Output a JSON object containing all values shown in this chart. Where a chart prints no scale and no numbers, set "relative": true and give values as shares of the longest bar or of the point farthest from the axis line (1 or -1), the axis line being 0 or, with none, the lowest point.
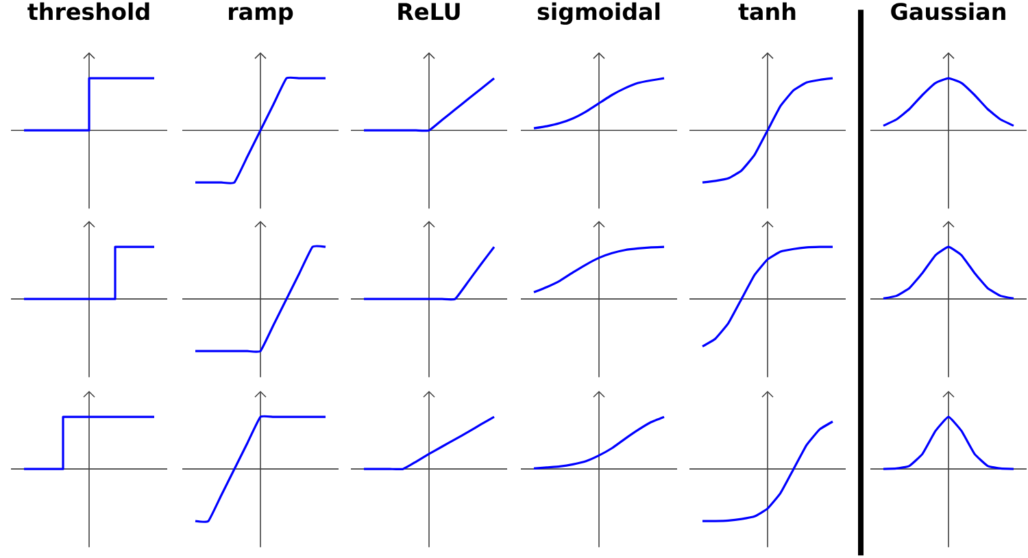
{
  "chart_data": [
    {
      "type": "step",
      "title": "threshold",
      "relative": true,
      "color": "#0000ff",
      "categories": [
        null,
        null,
        null,
        null,
        null,
        null,
        null,
        null,
        null,
        null,
        null
      ],
      "values": [
        0,
        0,
        0,
        0,
        0,
        1,
        1,
        1,
        1,
        1,
        1
      ]
    },
    {
      "type": "line",
      "title": "ramp",
      "relative": true,
      "color": "#0000ff",
      "categories": [
        null,
        null,
        null,
        null,
        null,
        null,
        null,
        null,
        null,
        null,
        null
      ],
      "values": [
        -1,
        -1,
        -1,
        -1,
        -0.5,
        0,
        0.5,
        1,
        1,
        1,
        1
      ]
    },
    {
      "type": "line",
      "title": "ReLU",
      "relative": true,
      "color": "#0000ff",
      "categories": [
        null,
        null,
        null,
        null,
        null,
        null,
        null,
        null,
        null,
        null,
        null
      ],
      "values": [
        0,
        0,
        0,
        0,
        0,
        0,
        0.2,
        0.4,
        0.6,
        0.8,
        1
      ]
    },
    {
      "type": "line",
      "title": "sigmoidal",
      "relative": true,
      "color": "#0000ff",
      "categories": [
        null,
        null,
        null,
        null,
        null,
        null,
        null,
        null,
        null,
        null,
        null
      ],
      "values": [
        0.04,
        0.08,
        0.14,
        0.23,
        0.36,
        0.52,
        0.68,
        0.81,
        0.91,
        0.96,
        1
      ]
    },
    {
      "type": "line",
      "title": "tanh",
      "relative": true,
      "color": "#0000ff",
      "categories": [
        null,
        null,
        null,
        null,
        null,
        null,
        null,
        null,
        null,
        null,
        null
      ],
      "values": [
        -1,
        -0.97,
        -0.92,
        -0.77,
        -0.47,
        0,
        0.47,
        0.77,
        0.92,
        0.97,
        1
      ]
    },
    {
      "type": "line",
      "title": "Gaussian",
      "relative": true,
      "color": "#0000ff",
      "categories": [
        null,
        null,
        null,
        null,
        null,
        null,
        null,
        null,
        null,
        null,
        null
      ],
      "values": [
        0.09,
        0.21,
        0.41,
        0.68,
        0.91,
        1,
        0.91,
        0.68,
        0.41,
        0.21,
        0.09
      ]
    },
    {
      "type": "step",
      "relative": true,
      "color": "#0000ff",
      "categories": [
        null,
        null,
        null,
        null,
        null,
        null,
        null,
        null,
        null,
        null,
        null
      ],
      "values": [
        0,
        0,
        0,
        0,
        0,
        0,
        0,
        1,
        1,
        1,
        1
      ]
    },
    {
      "type": "line",
      "relative": true,
      "color": "#0000ff",
      "categories": [
        null,
        null,
        null,
        null,
        null,
        null,
        null,
        null,
        null,
        null,
        null
      ],
      "values": [
        -1,
        -1,
        -1,
        -1,
        -1,
        -1,
        -0.5,
        0,
        0.5,
        1,
        1
      ]
    },
    {
      "type": "line",
      "relative": true,
      "color": "#0000ff",
      "categories": [
        null,
        null,
        null,
        null,
        null,
        null,
        null,
        null,
        null,
        null,
        null
      ],
      "values": [
        0,
        0,
        0,
        0,
        0,
        0,
        0,
        0,
        0.33,
        0.67,
        1
      ]
    },
    {
      "type": "line",
      "relative": true,
      "color": "#0000ff",
      "categories": [
        null,
        null,
        null,
        null,
        null,
        null,
        null,
        null,
        null,
        null,
        null
      ],
      "values": [
        0.13,
        0.23,
        0.35,
        0.51,
        0.66,
        0.79,
        0.88,
        0.94,
        0.97,
        0.99,
        1
      ]
    },
    {
      "type": "line",
      "relative": true,
      "color": "#0000ff",
      "categories": [
        null,
        null,
        null,
        null,
        null,
        null,
        null,
        null,
        null,
        null,
        null
      ],
      "values": [
        -0.91,
        -0.76,
        -0.46,
        0,
        0.46,
        0.76,
        0.91,
        0.96,
        0.99,
        1,
        1
      ]
    },
    {
      "type": "line",
      "relative": true,
      "color": "#0000ff",
      "categories": [
        null,
        null,
        null,
        null,
        null,
        null,
        null,
        null,
        null,
        null,
        null
      ],
      "values": [
        0.01,
        0.06,
        0.21,
        0.5,
        0.84,
        1,
        0.84,
        0.5,
        0.21,
        0.06,
        0.01
      ]
    },
    {
      "type": "step",
      "relative": true,
      "color": "#0000ff",
      "categories": [
        null,
        null,
        null,
        null,
        null,
        null,
        null,
        null,
        null,
        null,
        null
      ],
      "values": [
        0,
        0,
        0,
        1,
        1,
        1,
        1,
        1,
        1,
        1,
        1
      ]
    },
    {
      "type": "line",
      "relative": true,
      "color": "#0000ff",
      "categories": [
        null,
        null,
        null,
        null,
        null,
        null,
        null,
        null,
        null,
        null,
        null
      ],
      "values": [
        -1,
        -1,
        -0.5,
        0,
        0.5,
        1,
        1,
        1,
        1,
        1,
        1
      ]
    },
    {
      "type": "line",
      "relative": true,
      "color": "#0000ff",
      "categories": [
        null,
        null,
        null,
        null,
        null,
        null,
        null,
        null,
        null,
        null,
        null
      ],
      "values": [
        0,
        0,
        0,
        0,
        0.14,
        0.29,
        0.43,
        0.57,
        0.71,
        0.86,
        1
      ]
    },
    {
      "type": "line",
      "relative": true,
      "color": "#0000ff",
      "categories": [
        null,
        null,
        null,
        null,
        null,
        null,
        null,
        null,
        null,
        null,
        null
      ],
      "values": [
        0.01,
        0.03,
        0.05,
        0.09,
        0.15,
        0.26,
        0.4,
        0.58,
        0.75,
        0.9,
        1
      ]
    },
    {
      "type": "line",
      "relative": true,
      "color": "#0000ff",
      "categories": [
        null,
        null,
        null,
        null,
        null,
        null,
        null,
        null,
        null,
        null,
        null
      ],
      "values": [
        -1,
        -1,
        -0.99,
        -0.96,
        -0.91,
        -0.76,
        -0.46,
        0,
        0.46,
        0.76,
        0.91
      ]
    },
    {
      "type": "line",
      "relative": true,
      "color": "#0000ff",
      "categories": [
        null,
        null,
        null,
        null,
        null,
        null,
        null,
        null,
        null,
        null,
        null
      ],
      "values": [
        0,
        0.01,
        0.06,
        0.29,
        0.73,
        1,
        0.73,
        0.29,
        0.06,
        0.01,
        0
      ]
    }
  ]
}
